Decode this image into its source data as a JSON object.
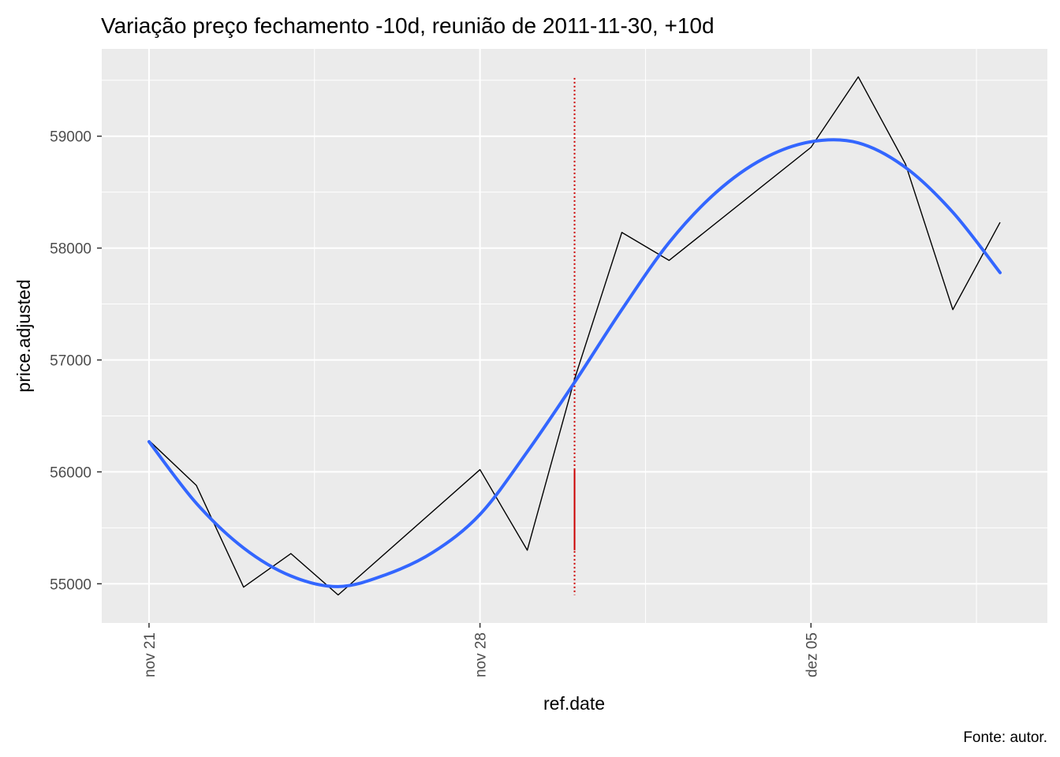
{
  "chart_data": {
    "type": "line",
    "title": "Variação preço fechamento -10d, reunião de 2011-11-30, +10d",
    "xlabel": "ref.date",
    "ylabel": "price.adjusted",
    "caption": "Fonte: autor.",
    "x_ticks": [
      {
        "date": "2011-11-21",
        "label": "nov 21"
      },
      {
        "date": "2011-11-28",
        "label": "nov 28"
      },
      {
        "date": "2011-12-05",
        "label": "dez 05"
      }
    ],
    "y_ticks": [
      55000,
      56000,
      57000,
      58000,
      59000
    ],
    "xlim": [
      "2011-11-20",
      "2011-12-10"
    ],
    "ylim": [
      54650,
      59780
    ],
    "grid": true,
    "series": [
      {
        "name": "",
        "kind": "line",
        "color": "#000000",
        "points": [
          {
            "x": "2011-11-21",
            "y": 56280
          },
          {
            "x": "2011-11-22",
            "y": 55880
          },
          {
            "x": "2011-11-23",
            "y": 54970
          },
          {
            "x": "2011-11-24",
            "y": 55270
          },
          {
            "x": "2011-11-25",
            "y": 54900
          },
          {
            "x": "2011-11-28",
            "y": 56020
          },
          {
            "x": "2011-11-29",
            "y": 55300
          },
          {
            "x": "2011-11-30",
            "y": 56830
          },
          {
            "x": "2011-12-01",
            "y": 58140
          },
          {
            "x": "2011-12-02",
            "y": 57890
          },
          {
            "x": "2011-12-05",
            "y": 58900
          },
          {
            "x": "2011-12-06",
            "y": 59530
          },
          {
            "x": "2011-12-07",
            "y": 58750
          },
          {
            "x": "2011-12-08",
            "y": 57450
          },
          {
            "x": "2011-12-09",
            "y": 58230
          }
        ]
      },
      {
        "name": "",
        "kind": "smooth",
        "color": "#3366ff",
        "points": [
          {
            "x": "2011-11-21",
            "y": 56270
          },
          {
            "x": "2011-11-22",
            "y": 55720
          },
          {
            "x": "2011-11-23",
            "y": 55320
          },
          {
            "x": "2011-11-24",
            "y": 55070
          },
          {
            "x": "2011-11-25",
            "y": 54975
          },
          {
            "x": "2011-11-26",
            "y": 55080
          },
          {
            "x": "2011-11-27",
            "y": 55280
          },
          {
            "x": "2011-11-28",
            "y": 55620
          },
          {
            "x": "2011-11-29",
            "y": 56180
          },
          {
            "x": "2011-11-30",
            "y": 56800
          },
          {
            "x": "2011-12-01",
            "y": 57450
          },
          {
            "x": "2011-12-02",
            "y": 58050
          },
          {
            "x": "2011-12-03",
            "y": 58500
          },
          {
            "x": "2011-12-04",
            "y": 58800
          },
          {
            "x": "2011-12-05",
            "y": 58950
          },
          {
            "x": "2011-12-06",
            "y": 58940
          },
          {
            "x": "2011-12-07",
            "y": 58720
          },
          {
            "x": "2011-12-08",
            "y": 58320
          },
          {
            "x": "2011-12-09",
            "y": 57780
          }
        ]
      }
    ],
    "annotations": [
      {
        "kind": "vline-dotted",
        "x": "2011-11-30",
        "y_from": 54900,
        "y_to": 59520,
        "color": "#cc0000"
      },
      {
        "kind": "vline-solid",
        "x": "2011-11-30",
        "y_from": 55300,
        "y_to": 56020,
        "color": "#cc0000"
      }
    ],
    "panel_color": "#ebebeb",
    "grid_color": "#ffffff"
  }
}
